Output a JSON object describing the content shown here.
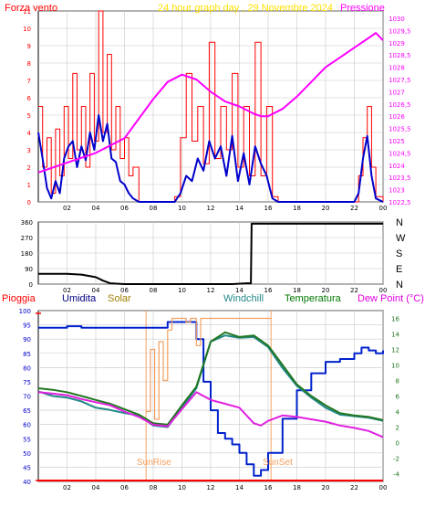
{
  "header": {
    "forza_label": "Forza vento",
    "title": "24 hour graph day , 29 Novembre 2024",
    "pressione_label": "Pressione"
  },
  "legend": {
    "pioggia": "Pioggia",
    "umidita": "Umidita",
    "solar": "Solar",
    "windchill": "Windchill",
    "temperatura": "Temperatura",
    "dewpoint": "Dew Point (°C)"
  },
  "annotations": {
    "sunrise": "SunRise",
    "sunset": "SunSet"
  },
  "colors": {
    "wind_gust": "#ff0000",
    "wind_avg": "#0000cc",
    "pressure": "#ff00ff",
    "direction": "#000000",
    "humidity": "#0022cc",
    "solar": "#f4a060",
    "windchill": "#228888",
    "temperature": "#227722",
    "dewpoint": "#e020e0",
    "rain": "#ff0000",
    "frame": "#000000",
    "grid": "#c8c8c8"
  },
  "chart_data": [
    {
      "type": "line",
      "title": "24 hour graph day , 29 Novembre 2024",
      "x_ticks": [
        "02",
        "04",
        "06",
        "08",
        "10",
        "12",
        "14",
        "16",
        "18",
        "20",
        "22",
        "00"
      ],
      "y_left_label": "Forza vento",
      "y_left_ticks": [
        "0",
        "1",
        "2",
        "3",
        "4",
        "5",
        "6",
        "7",
        "8",
        "9",
        "10",
        "11"
      ],
      "ylim_left": [
        0,
        11
      ],
      "y_right_label": "Pressione",
      "y_right_ticks": [
        "1022,5",
        "1023",
        "1023,5",
        "1024",
        "1024,5",
        "1025",
        "1025,5",
        "1026",
        "1026,5",
        "1027",
        "1027,5",
        "1028",
        "1028,5",
        "1029",
        "1029,5",
        "1030"
      ],
      "ylim_right": [
        1022.5,
        1030.3
      ],
      "xlim": [
        0,
        24
      ],
      "series": [
        {
          "name": "Forza vento",
          "x": [
            0,
            0.3,
            0.6,
            0.9,
            1.2,
            1.5,
            1.8,
            2.1,
            2.4,
            2.7,
            3,
            3.3,
            3.6,
            3.9,
            4.2,
            4.5,
            4.8,
            5.1,
            5.4,
            5.7,
            6,
            6.3,
            6.6,
            7,
            8,
            9,
            9.5,
            9.9,
            10.3,
            10.7,
            11.1,
            11.5,
            11.9,
            12.3,
            12.7,
            13.1,
            13.5,
            13.9,
            14.3,
            14.7,
            15.1,
            15.5,
            15.9,
            16.3,
            16.7,
            17,
            18,
            19,
            20,
            21,
            22,
            22.3,
            22.6,
            22.9,
            23.2,
            23.5,
            24
          ],
          "y": [
            5.5,
            2,
            3.7,
            0.5,
            4.2,
            1.5,
            5.5,
            2.5,
            7.4,
            3,
            5.5,
            2,
            7.4,
            3.5,
            11,
            4,
            8.5,
            3,
            5.5,
            2.5,
            3.7,
            1.5,
            2,
            0,
            0,
            0,
            0.3,
            3.7,
            7.4,
            3.5,
            5.5,
            2.2,
            9.2,
            2.5,
            5.5,
            3,
            7.4,
            2,
            5.5,
            1.5,
            9.2,
            1.5,
            5.5,
            0.3,
            0,
            0,
            0,
            0,
            0,
            0,
            0,
            1.5,
            3.7,
            5.5,
            2,
            0.3,
            0
          ]
        },
        {
          "name": "Forza vento media",
          "x": [
            0,
            0.3,
            0.6,
            0.9,
            1.2,
            1.5,
            1.8,
            2.1,
            2.4,
            2.7,
            3,
            3.3,
            3.6,
            3.9,
            4.2,
            4.5,
            4.8,
            5.1,
            5.4,
            5.7,
            6,
            6.3,
            6.6,
            7,
            8,
            9,
            9.5,
            9.9,
            10.3,
            10.7,
            11.1,
            11.5,
            11.9,
            12.3,
            12.7,
            13.1,
            13.5,
            13.9,
            14.3,
            14.7,
            15.1,
            15.5,
            15.9,
            16.3,
            16.7,
            17,
            18,
            19,
            20,
            21,
            22,
            22.3,
            22.6,
            22.9,
            23.2,
            23.5,
            24
          ],
          "y": [
            4,
            2.5,
            0.8,
            0.2,
            1.2,
            0.5,
            2.5,
            3.2,
            3.5,
            2,
            3.2,
            2.4,
            4,
            3,
            5,
            3.5,
            4.5,
            2.5,
            2.3,
            1.2,
            1,
            0.5,
            0.2,
            0,
            0,
            0,
            0,
            0.5,
            1.5,
            1.2,
            2.5,
            1.8,
            3.5,
            2.5,
            3.2,
            1.5,
            3.8,
            1.2,
            2.8,
            1,
            3.2,
            2.2,
            1.5,
            0.2,
            0,
            0,
            0,
            0,
            0,
            0,
            0,
            0.5,
            2.5,
            3.8,
            1.5,
            0.2,
            0
          ]
        },
        {
          "name": "Pressione",
          "x": [
            0,
            2,
            4,
            6,
            8,
            9,
            10,
            11,
            12,
            13,
            14,
            15,
            15.5,
            16,
            17,
            18,
            19,
            20,
            21,
            22,
            23,
            23.5,
            24
          ],
          "y": [
            1023.7,
            1024.1,
            1024.5,
            1025.1,
            1026.7,
            1027.4,
            1027.7,
            1027.5,
            1027.0,
            1026.6,
            1026.4,
            1026.1,
            1026.0,
            1026.0,
            1026.3,
            1026.8,
            1027.4,
            1028.0,
            1028.4,
            1028.8,
            1029.2,
            1029.4,
            1029.1
          ]
        }
      ]
    },
    {
      "type": "line",
      "title": "",
      "x_ticks": [
        "02",
        "04",
        "06",
        "08",
        "10",
        "12",
        "14",
        "16",
        "18",
        "20",
        "22",
        "00"
      ],
      "y_ticks": [
        "0",
        "90",
        "180",
        "270",
        "360"
      ],
      "y_right_ticks": [
        "N",
        "E",
        "S",
        "W",
        "N"
      ],
      "ylim": [
        0,
        360
      ],
      "xlim": [
        0,
        24
      ],
      "series": [
        {
          "name": "Direzione vento",
          "x": [
            0,
            2,
            3,
            4,
            4.5,
            5,
            6,
            8,
            10,
            12,
            13.5,
            14.5,
            14.8,
            14.85,
            24
          ],
          "y": [
            60,
            60,
            55,
            40,
            20,
            5,
            0,
            0,
            0,
            0,
            0,
            5,
            5,
            350,
            350
          ]
        }
      ]
    },
    {
      "type": "line",
      "title": "",
      "legend": [
        "Pioggia",
        "Umidita",
        "Solar",
        "Windchill",
        "Temperatura",
        "Dew Point (°C)"
      ],
      "x_ticks": [
        "02",
        "04",
        "06",
        "08",
        "10",
        "12",
        "14",
        "16",
        "18",
        "20",
        "22",
        "00"
      ],
      "y_left_ticks": [
        "40",
        "45",
        "50",
        "55",
        "60",
        "65",
        "70",
        "75",
        "80",
        "85",
        "90",
        "95",
        "100"
      ],
      "ylim_left": [
        40,
        100
      ],
      "y_right_ticks": [
        "-4",
        "-2",
        "0",
        "2",
        "4",
        "6",
        "8",
        "10",
        "12",
        "14",
        "16"
      ],
      "ylim_right": [
        -5,
        17
      ],
      "xlim": [
        0,
        24
      ],
      "series": [
        {
          "name": "Umidita",
          "x": [
            0,
            1,
            2,
            3,
            4,
            5,
            6,
            7,
            8,
            9,
            10,
            10.5,
            11,
            11.5,
            12,
            12.5,
            13,
            13.5,
            14,
            14.5,
            15,
            15.5,
            16,
            17,
            18,
            19,
            20,
            21,
            22,
            22.5,
            23,
            23.5,
            24
          ],
          "y": [
            94,
            94,
            94.5,
            94,
            94,
            94,
            94,
            94,
            94,
            96,
            96,
            96,
            90,
            75,
            65,
            57,
            55,
            53,
            50,
            46,
            42,
            44,
            50,
            62,
            72,
            78,
            82,
            83,
            85,
            87,
            86,
            85,
            86
          ]
        },
        {
          "name": "Solar",
          "x": [
            7.5,
            7.8,
            8.1,
            8.4,
            8.7,
            9,
            9.3,
            9.6,
            10,
            10.3,
            10.6,
            11,
            11.3,
            11.6,
            11.9,
            12.2,
            16.2
          ],
          "y": [
            4,
            12,
            3,
            13,
            8,
            14.5,
            16,
            16,
            16,
            15.5,
            16,
            12.5,
            16,
            16,
            16,
            16,
            16
          ]
        },
        {
          "name": "Windchill",
          "x": [
            0,
            1,
            2,
            3,
            4,
            5,
            6,
            7,
            8,
            9,
            10,
            11,
            12,
            13,
            14,
            15,
            16,
            17,
            18,
            19,
            20,
            21,
            22,
            23,
            24
          ],
          "y": [
            6.6,
            6,
            5.8,
            5.3,
            4.5,
            4.2,
            3.8,
            3.5,
            2.2,
            2.0,
            4.5,
            7.0,
            13.0,
            13.8,
            13.5,
            13.6,
            12.3,
            9.6,
            7.3,
            5.8,
            4.5,
            3.6,
            3.4,
            3.2,
            2.8
          ]
        },
        {
          "name": "Temperatura",
          "x": [
            0,
            1,
            2,
            3,
            4,
            5,
            6,
            7,
            8,
            9,
            10,
            11,
            12,
            13,
            14,
            15,
            16,
            17,
            18,
            19,
            20,
            21,
            22,
            23,
            24
          ],
          "y": [
            7.0,
            6.8,
            6.5,
            6.0,
            5.5,
            5.0,
            4.3,
            3.6,
            2.5,
            2.3,
            4.8,
            7.2,
            13.0,
            14.2,
            13.6,
            13.8,
            12.5,
            10.0,
            7.5,
            6.0,
            4.8,
            3.8,
            3.5,
            3.3,
            2.9
          ]
        },
        {
          "name": "Dew Point (°C)",
          "x": [
            0,
            1,
            2,
            3,
            4,
            5,
            6,
            7,
            8,
            9,
            10,
            11,
            12,
            13,
            14,
            15,
            15.5,
            16,
            17,
            18,
            19,
            20,
            21,
            22,
            23,
            24
          ],
          "y": [
            6.5,
            6.3,
            6.1,
            5.6,
            5.2,
            4.8,
            4.0,
            3.3,
            2.3,
            2.1,
            4.3,
            6.5,
            5.5,
            5.0,
            4.5,
            2.5,
            2.2,
            2.8,
            3.5,
            3.3,
            3.0,
            2.7,
            2.2,
            1.9,
            1.5,
            0.7
          ]
        },
        {
          "name": "Pioggia",
          "x": [
            0,
            24
          ],
          "y": [
            0,
            0
          ]
        }
      ]
    }
  ]
}
